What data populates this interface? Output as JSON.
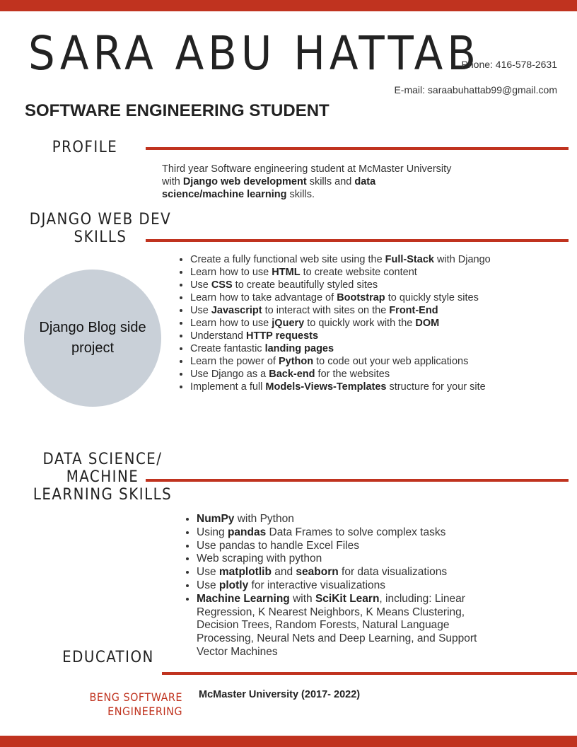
{
  "header": {
    "name": "SARA ABU HATTAB",
    "phone": "Phone: 416-578-2631",
    "email": "E-mail: saraabuhattab99@gmail.com",
    "role": "SOFTWARE ENGINEERING STUDENT"
  },
  "profile": {
    "title": "PROFILE",
    "text": [
      {
        "t": "Third year Software engineering student at McMaster University with ",
        "b": false
      },
      {
        "t": "Django web development",
        "b": true
      },
      {
        "t": " skills and ",
        "b": false
      },
      {
        "t": "data science/machine learning",
        "b": true
      },
      {
        "t": " skills.",
        "b": false
      }
    ]
  },
  "django": {
    "title_line1": "DJANGO WEB DEV",
    "title_line2": "SKILLS",
    "circle_text": "Django Blog side project",
    "items": [
      [
        {
          "t": "Create a fully functional web site using the ",
          "b": false
        },
        {
          "t": "Full-Stack",
          "b": true
        },
        {
          "t": " with Django",
          "b": false
        }
      ],
      [
        {
          "t": "Learn how to use ",
          "b": false
        },
        {
          "t": "HTML",
          "b": true
        },
        {
          "t": " to create website content",
          "b": false
        }
      ],
      [
        {
          "t": "Use ",
          "b": false
        },
        {
          "t": "CSS",
          "b": true
        },
        {
          "t": " to create beautifully styled sites",
          "b": false
        }
      ],
      [
        {
          "t": "Learn how to take advantage of ",
          "b": false
        },
        {
          "t": "Bootstrap",
          "b": true
        },
        {
          "t": " to quickly style sites",
          "b": false
        }
      ],
      [
        {
          "t": "Use ",
          "b": false
        },
        {
          "t": "Javascript",
          "b": true
        },
        {
          "t": " to interact with sites on the ",
          "b": false
        },
        {
          "t": "Front-End",
          "b": true
        }
      ],
      [
        {
          "t": "Learn how to use ",
          "b": false
        },
        {
          "t": "jQuery",
          "b": true
        },
        {
          "t": " to quickly work with the ",
          "b": false
        },
        {
          "t": "DOM",
          "b": true
        }
      ],
      [
        {
          "t": "Understand ",
          "b": false
        },
        {
          "t": "HTTP requests",
          "b": true
        }
      ],
      [
        {
          "t": "Create fantastic ",
          "b": false
        },
        {
          "t": "landing pages",
          "b": true
        }
      ],
      [
        {
          "t": "Learn the power of ",
          "b": false
        },
        {
          "t": "Python",
          "b": true
        },
        {
          "t": " to code out your web applications",
          "b": false
        }
      ],
      [
        {
          "t": "Use Django as a ",
          "b": false
        },
        {
          "t": "Back-end",
          "b": true
        },
        {
          "t": " for the websites",
          "b": false
        }
      ],
      [
        {
          "t": "Implement a full ",
          "b": false
        },
        {
          "t": "Models-Views-Templates",
          "b": true
        },
        {
          "t": " structure for your site",
          "b": false
        }
      ]
    ]
  },
  "datascience": {
    "title_line1": "DATA SCIENCE/",
    "title_line2": "MACHINE",
    "title_line3": "LEARNING SKILLS",
    "items": [
      [
        {
          "t": "NumPy",
          "b": true
        },
        {
          "t": " with Python",
          "b": false
        }
      ],
      [
        {
          "t": "Using ",
          "b": false
        },
        {
          "t": "pandas",
          "b": true
        },
        {
          "t": " Data Frames to solve complex tasks",
          "b": false
        }
      ],
      [
        {
          "t": "Use pandas to handle Excel Files",
          "b": false
        }
      ],
      [
        {
          "t": "Web scraping with python",
          "b": false
        }
      ],
      [
        {
          "t": "Use ",
          "b": false
        },
        {
          "t": "matplotlib",
          "b": true
        },
        {
          "t": " and ",
          "b": false
        },
        {
          "t": "seaborn",
          "b": true
        },
        {
          "t": " for data visualizations",
          "b": false
        }
      ],
      [
        {
          "t": "Use ",
          "b": false
        },
        {
          "t": "plotly",
          "b": true
        },
        {
          "t": " for interactive visualizations",
          "b": false
        }
      ],
      [
        {
          "t": "Machine Learning",
          "b": true
        },
        {
          "t": " with ",
          "b": false
        },
        {
          "t": "SciKit Learn",
          "b": true
        },
        {
          "t": ", including: Linear Regression, K Nearest Neighbors, K Means Clustering, Decision Trees, Random Forests, Natural Language Processing, Neural Nets and Deep Learning, and Support Vector Machines",
          "b": false
        }
      ]
    ]
  },
  "education": {
    "title": "EDUCATION",
    "degree_line1": "BENG SOFTWARE",
    "degree_line2": "ENGINEERING",
    "school": "McMaster University (2017- 2022)"
  },
  "colors": {
    "accent": "#c0331f",
    "circle": "#c9d0d8",
    "text": "#222222"
  }
}
